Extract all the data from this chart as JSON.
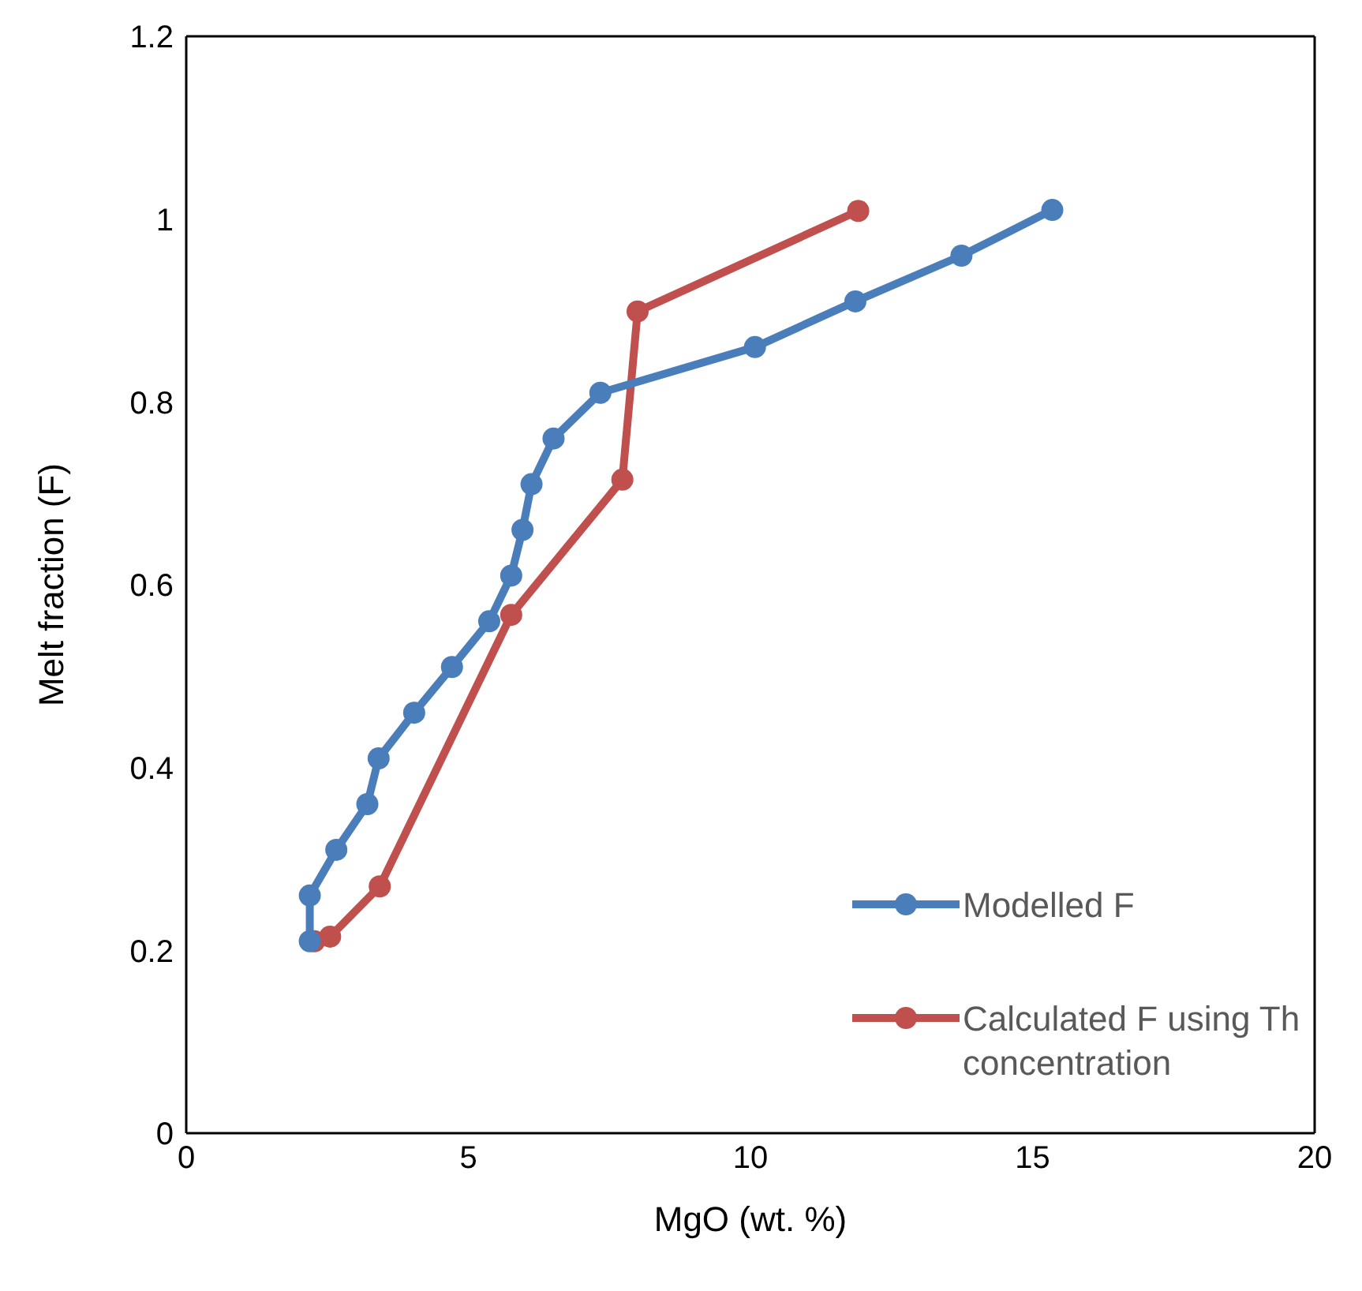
{
  "chart_data": {
    "type": "line",
    "xlabel": "MgO (wt. %)",
    "ylabel": "Melt fraction  (F)",
    "xlim": [
      0,
      20
    ],
    "xticks": [
      0,
      5,
      10,
      15,
      20
    ],
    "ylim": [
      0,
      1.2
    ],
    "yticks": [
      0,
      0.2,
      0.4,
      0.6,
      0.8,
      1,
      1.2
    ],
    "grid": false,
    "legend": "bottom right",
    "marker": "circle",
    "line_style": "solid",
    "series": [
      {
        "name": "Modelled F",
        "color": "#4a7ebb",
        "x": [
          2.19,
          2.19,
          2.66,
          3.21,
          3.41,
          4.04,
          4.71,
          5.37,
          5.76,
          5.96,
          6.12,
          6.51,
          7.34,
          10.08,
          11.86,
          13.74,
          15.35
        ],
        "values": [
          0.21,
          0.26,
          0.31,
          0.36,
          0.41,
          0.46,
          0.51,
          0.56,
          0.61,
          0.66,
          0.71,
          0.76,
          0.81,
          0.86,
          0.91,
          0.96,
          1.01
        ]
      },
      {
        "name": "Calculated F using Th concentration",
        "color": "#c0504d",
        "x": [
          2.27,
          2.55,
          3.43,
          5.76,
          7.73,
          8.0,
          11.91
        ],
        "values": [
          0.21,
          0.215,
          0.27,
          0.567,
          0.715,
          0.899,
          1.009
        ]
      }
    ]
  }
}
